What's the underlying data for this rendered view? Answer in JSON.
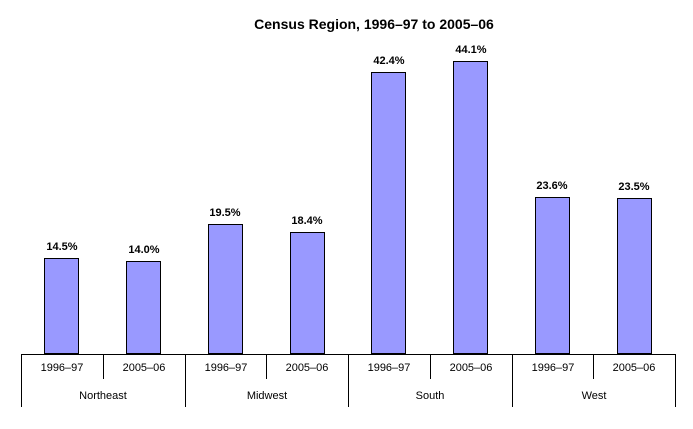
{
  "chart_data": {
    "type": "bar",
    "title": "Census Region, 1996–97 to 2005–06",
    "categories": [
      "Northeast",
      "Midwest",
      "South",
      "West"
    ],
    "series": [
      {
        "name": "1996–97",
        "values": [
          14.5,
          19.5,
          42.4,
          23.6
        ],
        "labels": [
          "14.5%",
          "19.5%",
          "42.4%",
          "23.6%"
        ]
      },
      {
        "name": "2005–06",
        "values": [
          14.0,
          18.4,
          44.1,
          23.5
        ],
        "labels": [
          "14.0%",
          "18.4%",
          "44.1%",
          "23.5%"
        ]
      }
    ],
    "xlabel": "",
    "ylabel": "",
    "ylim": [
      0,
      47.5
    ],
    "grid": false,
    "legend": "none",
    "data_labels": true,
    "bar_color": "#9999ff",
    "bar_border_color": "#000000",
    "text_color": "#000000",
    "background_color": "#ffffff"
  }
}
